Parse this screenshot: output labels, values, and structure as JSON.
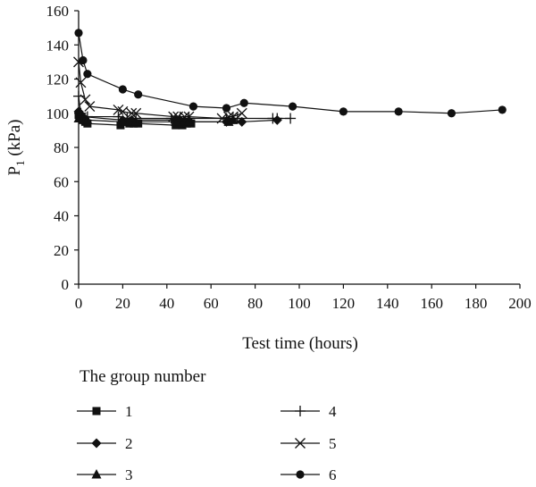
{
  "chart_data": {
    "type": "line",
    "xlabel": "Test time (hours)",
    "ylabel_main": "P",
    "ylabel_sub": "1",
    "ylabel_unit": " (kPa)",
    "xlim": [
      0,
      200
    ],
    "ylim": [
      0,
      160
    ],
    "x_ticks": [
      "0",
      "20",
      "40",
      "60",
      "80",
      "100",
      "120",
      "140",
      "160",
      "180",
      "200"
    ],
    "y_ticks": [
      "0",
      "20",
      "40",
      "60",
      "80",
      "100",
      "120",
      "140",
      "160"
    ],
    "grid": false,
    "legend_title": "The group number",
    "legend_placement": "bottom",
    "series": [
      {
        "name": "1",
        "marker": "square",
        "x": [
          0,
          1,
          3,
          4,
          19,
          23,
          25,
          27,
          44,
          47,
          49,
          51
        ],
        "y": [
          99,
          97,
          95,
          94,
          93,
          94,
          94,
          94,
          93,
          93,
          94,
          94
        ]
      },
      {
        "name": "2",
        "marker": "diamond",
        "x": [
          0,
          2,
          20,
          24,
          44,
          46,
          50,
          67,
          74,
          90
        ],
        "y": [
          101,
          98,
          96,
          96,
          96,
          96,
          95,
          95,
          95,
          96
        ]
      },
      {
        "name": "3",
        "marker": "triangle",
        "x": [
          0,
          2,
          4,
          20,
          23,
          26,
          44,
          48,
          50,
          68,
          70
        ],
        "y": [
          97,
          96,
          96,
          95,
          95,
          95,
          95,
          95,
          95,
          95,
          96
        ]
      },
      {
        "name": "4",
        "marker": "plus",
        "x": [
          0,
          1,
          2,
          4,
          18,
          22,
          26,
          42,
          46,
          50,
          67,
          70,
          72,
          88,
          90,
          96
        ],
        "y": [
          110,
          100,
          98,
          98,
          98,
          97,
          97,
          97,
          97,
          97,
          97,
          97,
          97,
          97,
          97,
          97
        ]
      },
      {
        "name": "5",
        "marker": "cross",
        "x": [
          0,
          1,
          3,
          5,
          18,
          20,
          24,
          26,
          43,
          45,
          48,
          50,
          65,
          68,
          70,
          74
        ],
        "y": [
          130,
          118,
          108,
          104,
          102,
          101,
          100,
          100,
          98,
          98,
          98,
          98,
          97,
          98,
          98,
          100
        ]
      },
      {
        "name": "6",
        "marker": "circle",
        "x": [
          0,
          2,
          4,
          20,
          27,
          52,
          67,
          75,
          97,
          120,
          145,
          169,
          192
        ],
        "y": [
          147,
          131,
          123,
          114,
          111,
          104,
          103,
          106,
          104,
          101,
          101,
          100,
          102
        ]
      }
    ]
  }
}
